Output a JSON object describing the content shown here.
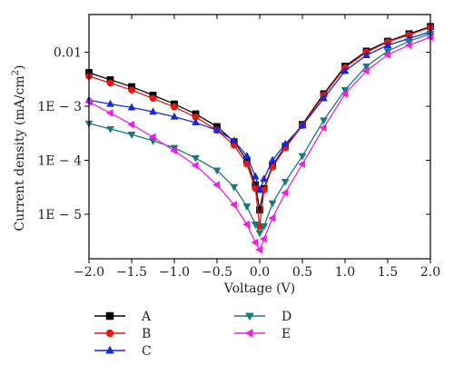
{
  "chart_data": {
    "type": "line",
    "xlabel": "Voltage (V)",
    "ylabel_main": "Current density (mA/cm",
    "ylabel_sup": "2",
    "ylabel_close": ")",
    "yscale": "log",
    "xlim": [
      -2.0,
      2.0
    ],
    "ylim": [
      1.5e-06,
      0.05
    ],
    "x_ticks": [
      -2.0,
      -1.5,
      -1.0,
      -0.5,
      0.0,
      0.5,
      1.0,
      1.5,
      2.0
    ],
    "x_tick_labels": [
      "−2.0",
      "−1.5",
      "−1.0",
      "−0.5",
      "0.0",
      "0.5",
      "1.0",
      "1.5",
      "2.0"
    ],
    "y_ticks": [
      1e-05,
      0.0001,
      0.001,
      0.01
    ],
    "y_tick_labels": [
      "1E − 5",
      "1E − 4",
      "1E − 3",
      "0.01"
    ],
    "legend_position": "bottom",
    "x": [
      -2.0,
      -1.75,
      -1.5,
      -1.25,
      -1.0,
      -0.75,
      -0.5,
      -0.3,
      -0.15,
      -0.05,
      0.0,
      0.05,
      0.15,
      0.3,
      0.5,
      0.75,
      1.0,
      1.25,
      1.5,
      1.75,
      2.0
    ],
    "series": [
      {
        "name": "A",
        "color": "#000000",
        "marker": "square",
        "values": [
          0.0042,
          0.0031,
          0.0023,
          0.0016,
          0.0011,
          0.00072,
          0.00042,
          0.00022,
          0.0001,
          3.5e-05,
          1.2e-05,
          3e-05,
          8e-05,
          0.00018,
          0.00046,
          0.0017,
          0.0055,
          0.0105,
          0.016,
          0.022,
          0.03
        ]
      },
      {
        "name": "B",
        "color": "#e8170f",
        "marker": "circle",
        "values": [
          0.0036,
          0.0027,
          0.002,
          0.0014,
          0.00097,
          0.00063,
          0.00036,
          0.00019,
          8.5e-05,
          3e-05,
          6e-06,
          2.8e-05,
          7.5e-05,
          0.00017,
          0.00044,
          0.0016,
          0.0052,
          0.01,
          0.0155,
          0.021,
          0.029
        ]
      },
      {
        "name": "C",
        "color": "#1428e0",
        "marker": "triangle-up",
        "values": [
          0.0013,
          0.0011,
          0.00095,
          0.00079,
          0.00064,
          0.0005,
          0.00036,
          0.00023,
          0.00012,
          5e-05,
          2.8e-05,
          4.5e-05,
          0.0001,
          0.0002,
          0.00044,
          0.0014,
          0.0045,
          0.0088,
          0.0135,
          0.018,
          0.024
        ]
      },
      {
        "name": "D",
        "color": "#1a7a7a",
        "marker": "triangle-down",
        "values": [
          0.00048,
          0.00038,
          0.0003,
          0.00023,
          0.00017,
          0.00011,
          6.5e-05,
          3.2e-05,
          1.4e-05,
          6.5e-06,
          4.5e-06,
          6e-06,
          1.6e-05,
          4e-05,
          0.00012,
          0.00055,
          0.002,
          0.0055,
          0.0105,
          0.016,
          0.022
        ]
      },
      {
        "name": "E",
        "color": "#ee1ee6",
        "marker": "triangle-left",
        "values": [
          0.0012,
          0.00075,
          0.00046,
          0.00027,
          0.00015,
          8e-05,
          3.5e-05,
          1.5e-05,
          6.5e-06,
          3e-06,
          2.2e-06,
          3.5e-06,
          8.5e-06,
          2.5e-05,
          8.5e-05,
          0.0004,
          0.0017,
          0.0045,
          0.009,
          0.0135,
          0.019
        ]
      }
    ]
  }
}
